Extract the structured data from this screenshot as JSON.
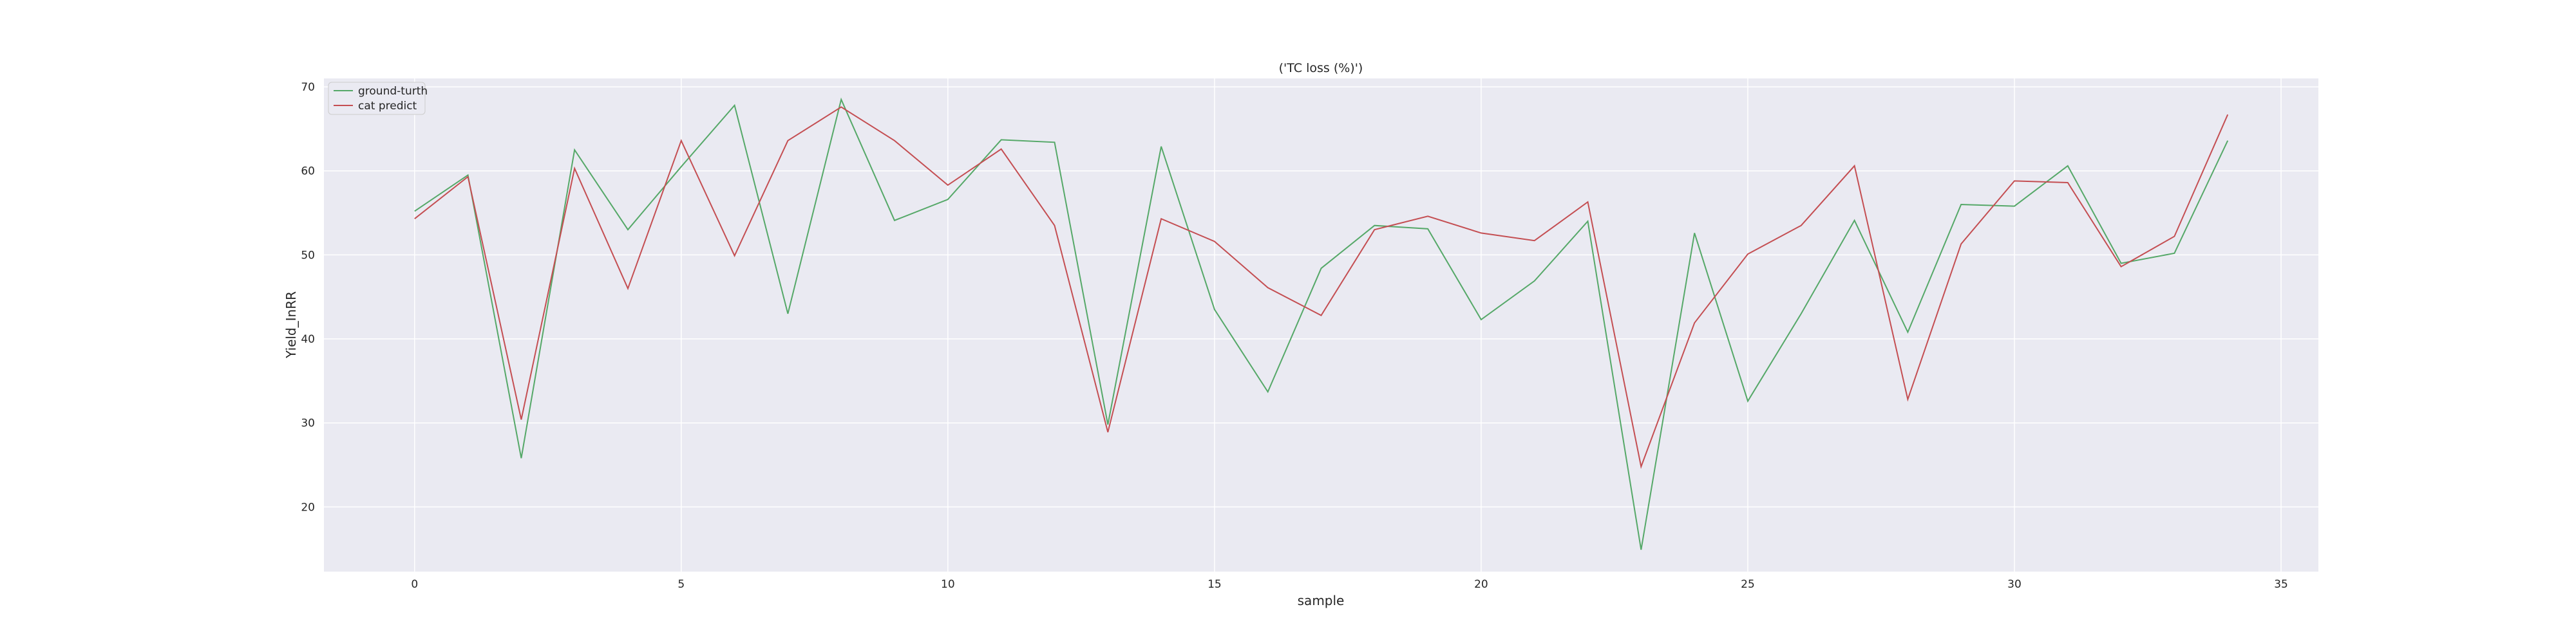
{
  "chart_data": {
    "type": "line",
    "title": "('TC loss (%)')",
    "xlabel": "sample",
    "ylabel": "Yield_InRR",
    "x": [
      0,
      1,
      2,
      3,
      4,
      5,
      6,
      7,
      8,
      9,
      10,
      11,
      12,
      13,
      14,
      15,
      16,
      17,
      18,
      19,
      20,
      21,
      22,
      23,
      24,
      25,
      26,
      27,
      28,
      29,
      30,
      31,
      32,
      33,
      34
    ],
    "xlim": [
      -1.7,
      35.7
    ],
    "ylim": [
      12.3,
      71
    ],
    "xticks": [
      0,
      5,
      10,
      15,
      20,
      25,
      30,
      35
    ],
    "yticks": [
      20,
      30,
      40,
      50,
      60,
      70
    ],
    "grid": true,
    "legend_position": "top-left",
    "series": [
      {
        "name": "ground-turth",
        "color": "#55a868",
        "values": [
          55.2,
          59.5,
          25.8,
          62.5,
          53.0,
          60.5,
          67.8,
          43.0,
          68.5,
          54.1,
          56.6,
          63.7,
          63.4,
          29.8,
          62.9,
          43.5,
          33.7,
          48.4,
          53.5,
          53.1,
          42.3,
          46.9,
          54.0,
          14.9,
          52.6,
          32.6,
          43.0,
          54.1,
          40.8,
          56.0,
          55.8,
          60.6,
          49.0,
          50.2,
          63.6
        ]
      },
      {
        "name": "cat predict",
        "color": "#c44e52",
        "values": [
          54.3,
          59.3,
          30.4,
          60.3,
          46.0,
          63.6,
          49.9,
          63.6,
          67.6,
          63.6,
          58.3,
          62.6,
          53.5,
          28.9,
          54.3,
          51.6,
          46.1,
          42.8,
          53.0,
          54.6,
          52.6,
          51.7,
          56.3,
          24.8,
          41.9,
          50.1,
          53.5,
          60.6,
          32.8,
          51.3,
          58.8,
          58.6,
          48.6,
          52.2,
          66.7
        ]
      }
    ]
  }
}
